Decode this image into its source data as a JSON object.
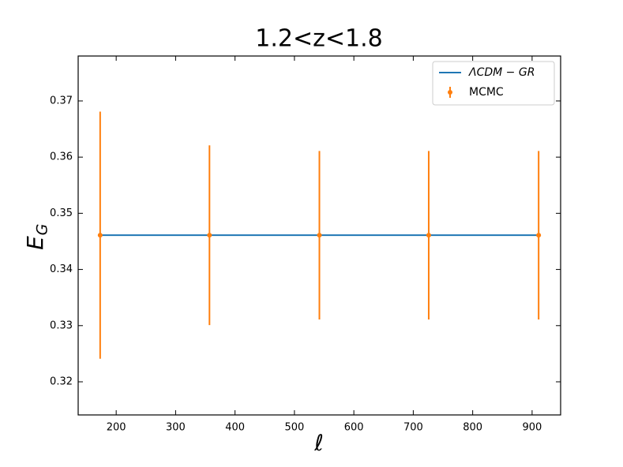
{
  "chart_data": {
    "type": "errorbar",
    "title": "1.2<z<1.8",
    "xlabel": "ℓ",
    "ylabel": "E",
    "ylabel_subscript": "G",
    "xlim": [
      136,
      948
    ],
    "ylim": [
      0.3141,
      0.378
    ],
    "xticks": [
      200,
      300,
      400,
      500,
      600,
      700,
      800,
      900
    ],
    "yticks": [
      0.32,
      0.33,
      0.34,
      0.35,
      0.36,
      0.37
    ],
    "legend": "upper right",
    "series": [
      {
        "name": "ΛCDM − GR",
        "kind": "line",
        "color": "#1f77b4",
        "x": [
          173,
          911
        ],
        "values": [
          0.3461,
          0.3461
        ]
      },
      {
        "name": "MCMC",
        "kind": "errorbar",
        "color": "#ff7f0e",
        "x": [
          173,
          357,
          542,
          726,
          911
        ],
        "values": [
          0.3461,
          0.3461,
          0.3461,
          0.3461,
          0.3461
        ],
        "errors": [
          0.022,
          0.016,
          0.015,
          0.015,
          0.015
        ]
      }
    ]
  }
}
